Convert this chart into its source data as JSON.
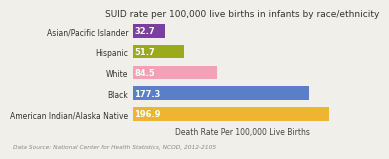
{
  "title": "SUID rate per 100,000 live births in infants by race/ethnicity",
  "categories": [
    "American Indian/Alaska Native",
    "Black",
    "White",
    "Hispanic",
    "Asian/Pacific Islander"
  ],
  "values": [
    196.9,
    177.3,
    84.5,
    51.7,
    32.7
  ],
  "bar_colors": [
    "#f0b432",
    "#5b7ec9",
    "#f4a0b5",
    "#9aaa1a",
    "#7b3f9e"
  ],
  "xlabel": "Death Rate Per 100,000 Live Births",
  "footnote": "Data Source: National Center for Health Statistics, NCOD, 2012-2105",
  "xlim": [
    0,
    220
  ],
  "background_color": "#f0efea",
  "title_fontsize": 6.5,
  "label_fontsize": 5.5,
  "value_fontsize": 6,
  "xlabel_fontsize": 5.5,
  "footnote_fontsize": 4.2
}
